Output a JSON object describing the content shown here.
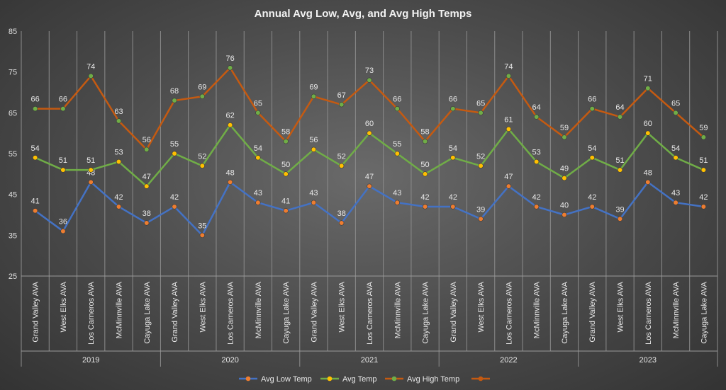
{
  "chart_data": {
    "type": "line",
    "title": "Annual Avg Low, Avg, and Avg High Temps",
    "ylim": [
      25,
      85
    ],
    "yticks": [
      25,
      35,
      45,
      55,
      65,
      75,
      85
    ],
    "grid": "vertical category lines",
    "legend_position": "bottom",
    "years": [
      "2019",
      "2020",
      "2021",
      "2022",
      "2023"
    ],
    "categories": [
      "Grand Valley AVA",
      "West Elks AVA",
      "Los Carneros AVA",
      "McMinnville AVA",
      "Cayuga Lake AVA",
      "Grand Valley AVA",
      "West Elks AVA",
      "Los Carneros AVA",
      "McMinnville AVA",
      "Cayuga Lake AVA",
      "Grand Valley AVA",
      "West Elks AVA",
      "Los Carneros AVA",
      "McMinnville AVA",
      "Cayuga Lake AVA",
      "Grand Valley AVA",
      "West Elks AVA",
      "Los Carneros AVA",
      "McMinnville AVA",
      "Cayuga Lake AVA",
      "Grand Valley AVA",
      "West Elks AVA",
      "Los Carneros AVA",
      "McMinnville AVA",
      "Cayuga Lake AVA"
    ],
    "series": [
      {
        "name": "Avg Low Temp",
        "line_color": "#4472c4",
        "marker_color": "#ed7d31",
        "values": [
          41,
          36,
          48,
          42,
          38,
          42,
          35,
          48,
          43,
          41,
          43,
          38,
          47,
          43,
          42,
          42,
          39,
          47,
          42,
          40,
          42,
          39,
          48,
          43,
          42
        ]
      },
      {
        "name": "Avg Temp",
        "line_color": "#70ad47",
        "marker_color": "#ffc000",
        "values": [
          54,
          51,
          51,
          53,
          47,
          55,
          52,
          62,
          54,
          50,
          56,
          52,
          60,
          55,
          50,
          54,
          52,
          61,
          53,
          49,
          54,
          51,
          60,
          54,
          51
        ]
      },
      {
        "name": "Avg High Temp",
        "line_color": "#c55a11",
        "marker_color": "#70ad47",
        "values": [
          66,
          66,
          74,
          63,
          56,
          68,
          69,
          76,
          65,
          58,
          69,
          67,
          73,
          66,
          58,
          66,
          65,
          74,
          64,
          59,
          66,
          64,
          71,
          65,
          59
        ]
      }
    ],
    "legend_extra": {
      "name": "",
      "line_color": "#c55a11",
      "marker_color": "#c55a11"
    }
  }
}
